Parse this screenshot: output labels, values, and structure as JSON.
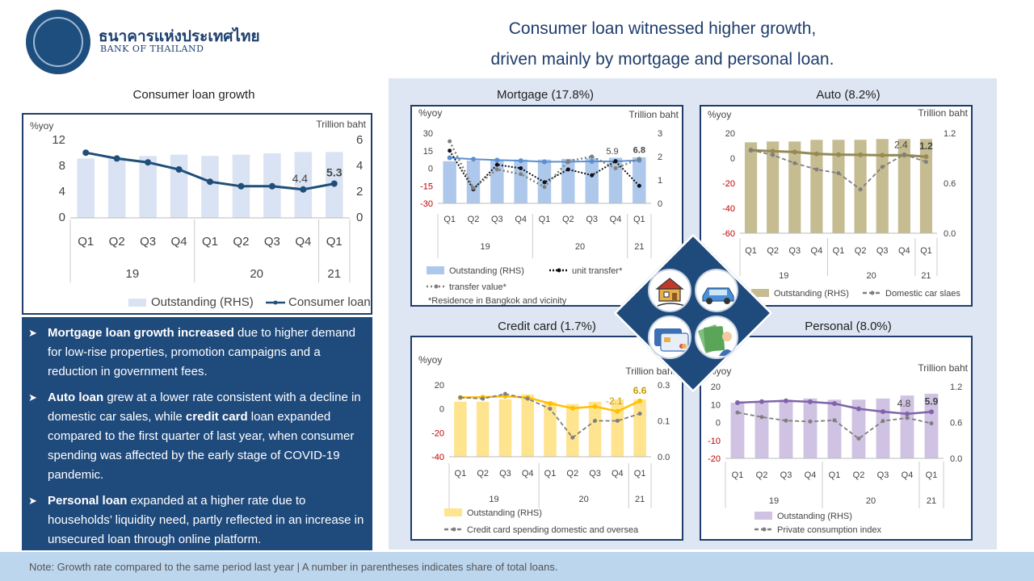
{
  "header": {
    "logo_thai": "ธนาคารแห่งประเทศไทย",
    "logo_en": "BANK OF THAILAND",
    "title_line1": "Consumer loan witnessed higher growth,",
    "title_line2": "driven mainly by mortgage and personal loan."
  },
  "panels": {
    "consumer_title": "Consumer loan growth",
    "mortgage_title": "Mortgage (17.8%)",
    "auto_title": "Auto (8.2%)",
    "credit_title": "Credit card (1.7%)",
    "personal_title": "Personal (8.0%)"
  },
  "bullets": [
    {
      "bold": "Mortgage loan growth increased",
      "rest": " due to higher demand for low-rise properties, promotion campaigns and a reduction in government fees."
    },
    {
      "bold": "Auto loan",
      "rest": " grew at a lower rate consistent with a decline in domestic car sales, while ",
      "bold2": "credit card",
      "rest2": " loan expanded compared to the first quarter of last year, when consumer spending was affected by the early stage of COVID-19 pandemic."
    },
    {
      "bold": "Personal loan",
      "rest": " expanded at a higher rate due to households’ liquidity need, partly reflected in an increase in unsecured loan through online platform."
    }
  ],
  "footer": "Note: Growth rate compared to the same period last year | A number in parentheses indicates share of total loans.",
  "icons": [
    "house-icon",
    "car-icon",
    "credit-card-icon",
    "money-icon"
  ],
  "colors": {
    "navy": "#1f3d6b",
    "bar_blue": "#dae3f3",
    "line_blue": "#1f4e79",
    "mortgage_bar": "#adc8ea",
    "mortgage_line": "#5b8fd1",
    "auto_bar": "#c6bc92",
    "auto_line": "#948a54",
    "credit_bar": "#ffe48f",
    "credit_line": "#ffc000",
    "personal_bar": "#cfc2e3",
    "personal_line": "#7f64a8",
    "grey_line": "#7f7f7f"
  },
  "chart_data": [
    {
      "id": "consumer",
      "type": "bar+line",
      "categories": [
        "Q1",
        "Q2",
        "Q3",
        "Q4",
        "Q1",
        "Q2",
        "Q3",
        "Q4",
        "Q1"
      ],
      "year_groups": [
        {
          "label": "19",
          "span": 4
        },
        {
          "label": "20",
          "span": 4
        },
        {
          "label": "21",
          "span": 1
        }
      ],
      "ylabel_left": "%yoy",
      "ylabel_right": "Trillion baht",
      "yticks_left": [
        "12",
        "8",
        "4",
        "0"
      ],
      "yticks_right": [
        "6",
        "4",
        "2",
        "0"
      ],
      "ylim_left": [
        0,
        12
      ],
      "ylim_right": [
        0,
        6
      ],
      "series": [
        {
          "name": "Outstanding (RHS)",
          "type": "bar",
          "axis": "right",
          "values": [
            4.6,
            4.7,
            4.8,
            4.9,
            4.8,
            4.9,
            5.0,
            5.1,
            5.1
          ]
        },
        {
          "name": "Consumer loan",
          "type": "line",
          "axis": "left",
          "values": [
            10.1,
            9.2,
            8.6,
            7.5,
            5.6,
            4.9,
            4.9,
            4.4,
            5.3
          ]
        }
      ],
      "annotations": [
        "4.4",
        "5.3"
      ]
    },
    {
      "id": "mortgage",
      "type": "bar+line",
      "categories": [
        "Q1",
        "Q2",
        "Q3",
        "Q4",
        "Q1",
        "Q2",
        "Q3",
        "Q4",
        "Q1"
      ],
      "year_groups": [
        {
          "label": "19",
          "span": 4
        },
        {
          "label": "20",
          "span": 4
        },
        {
          "label": "21",
          "span": 1
        }
      ],
      "ylabel_left": "%yoy",
      "ylabel_right": "Trillion baht",
      "yticks_left": [
        "30",
        "15",
        "0",
        "-15",
        "-30"
      ],
      "yticks_right": [
        "3",
        "2",
        "1",
        "0"
      ],
      "ylim_left": [
        -30,
        30
      ],
      "ylim_right": [
        0,
        3
      ],
      "series": [
        {
          "name": "Outstanding (RHS)",
          "type": "bar",
          "axis": "right",
          "values": [
            1.8,
            1.83,
            1.85,
            1.87,
            1.87,
            1.9,
            1.93,
            1.95,
            1.97
          ]
        },
        {
          "name": "Mortgage",
          "type": "line",
          "axis": "left",
          "values": [
            9,
            7.8,
            7.0,
            6.5,
            5.5,
            5.6,
            5.9,
            5.9,
            6.8
          ]
        },
        {
          "name": "unit transfer*",
          "type": "dotted",
          "axis": "left",
          "values": [
            15,
            -18,
            3,
            0,
            -12,
            -1,
            -6,
            6,
            -15
          ]
        },
        {
          "name": "transfer value*",
          "type": "dash-dot",
          "axis": "left",
          "values": [
            23,
            -17,
            -1,
            -5,
            -16,
            6,
            10,
            0,
            8
          ]
        }
      ],
      "annotations": [
        "5.9",
        "6.8"
      ],
      "note": "*Residence in Bangkok and vicinity"
    },
    {
      "id": "auto",
      "type": "bar+line",
      "categories": [
        "Q1",
        "Q2",
        "Q3",
        "Q4",
        "Q1",
        "Q2",
        "Q3",
        "Q4",
        "Q1"
      ],
      "year_groups": [
        {
          "label": "19",
          "span": 4
        },
        {
          "label": "20",
          "span": 4
        },
        {
          "label": "21",
          "span": 1
        }
      ],
      "ylabel_left": "%yoy",
      "ylabel_right": "Trillion baht",
      "yticks_left": [
        "20",
        "0",
        "-20",
        "-40",
        "-60"
      ],
      "yticks_right": [
        "1.2",
        "0.6",
        "0.0"
      ],
      "ylim_left": [
        -60,
        20
      ],
      "ylim_right": [
        0,
        1.2
      ],
      "series": [
        {
          "name": "Outstanding (RHS)",
          "type": "bar",
          "axis": "right",
          "values": [
            1.09,
            1.1,
            1.1,
            1.12,
            1.12,
            1.12,
            1.13,
            1.13,
            1.13
          ]
        },
        {
          "name": "Auto",
          "type": "line",
          "axis": "left",
          "values": [
            6.4,
            5.6,
            4.9,
            3.4,
            2.8,
            2.7,
            2.3,
            2.4,
            1.2
          ]
        },
        {
          "name": "Domestic car slaes",
          "type": "dashed",
          "axis": "left",
          "values": [
            6.5,
            2.5,
            -4,
            -9,
            -12,
            -25,
            -7,
            3,
            -3
          ]
        }
      ],
      "annotations": [
        "2.4",
        "1.2"
      ]
    },
    {
      "id": "credit",
      "type": "bar+line",
      "categories": [
        "Q1",
        "Q2",
        "Q3",
        "Q4",
        "Q1",
        "Q2",
        "Q3",
        "Q4",
        "Q1"
      ],
      "year_groups": [
        {
          "label": "19",
          "span": 4
        },
        {
          "label": "20",
          "span": 4
        },
        {
          "label": "21",
          "span": 1
        }
      ],
      "ylabel_left": "%yoy",
      "ylabel_right": "Trillion baht",
      "yticks_left": [
        "20",
        "0",
        "-20",
        "-40"
      ],
      "yticks_right": [
        "0.3",
        "0.1",
        "0.0"
      ],
      "ylim_left": [
        -40,
        20
      ],
      "ylim_right": [
        0,
        0.3
      ],
      "series": [
        {
          "name": "Outstanding (RHS)",
          "type": "bar",
          "axis": "right",
          "values": [
            0.23,
            0.23,
            0.24,
            0.26,
            0.23,
            0.22,
            0.23,
            0.24,
            0.24
          ]
        },
        {
          "name": "Credit card",
          "type": "line",
          "axis": "left",
          "values": [
            9.5,
            9.8,
            10.5,
            9.5,
            4.5,
            0.5,
            2.0,
            -2.1,
            6.6
          ]
        },
        {
          "name": "Credit card spending domestic and oversea",
          "type": "dashed",
          "axis": "left",
          "values": [
            9.5,
            8.5,
            12.5,
            8.5,
            0,
            -24,
            -10,
            -10,
            -4
          ]
        }
      ],
      "annotations": [
        "-2.1",
        "6.6"
      ]
    },
    {
      "id": "personal",
      "type": "bar+line",
      "categories": [
        "Q1",
        "Q2",
        "Q3",
        "Q4",
        "Q1",
        "Q2",
        "Q3",
        "Q4",
        "Q1"
      ],
      "year_groups": [
        {
          "label": "19",
          "span": 4
        },
        {
          "label": "20",
          "span": 4
        },
        {
          "label": "21",
          "span": 1
        }
      ],
      "ylabel_left": "%yoy",
      "ylabel_right": "Trillion baht",
      "yticks_left": [
        "20",
        "10",
        "0",
        "-10",
        "-20"
      ],
      "yticks_right": [
        "1.2",
        "0.6",
        "0.0"
      ],
      "ylim_left": [
        -20,
        20
      ],
      "ylim_right": [
        0,
        1.2
      ],
      "series": [
        {
          "name": "Outstanding (RHS)",
          "type": "bar",
          "axis": "right",
          "values": [
            0.93,
            0.95,
            0.98,
            1.0,
            0.98,
            0.98,
            1.0,
            1.05,
            1.08
          ]
        },
        {
          "name": "Personal",
          "type": "line",
          "axis": "left",
          "values": [
            11,
            11.6,
            12,
            11.5,
            10.5,
            7.6,
            6,
            4.8,
            5.9
          ]
        },
        {
          "name": "Private consumption index",
          "type": "dashed",
          "axis": "left",
          "values": [
            5.5,
            3,
            1,
            0.5,
            1.2,
            -9,
            0.8,
            2.5,
            -0.5
          ]
        }
      ],
      "annotations": [
        "4.8",
        "5.9"
      ]
    }
  ]
}
